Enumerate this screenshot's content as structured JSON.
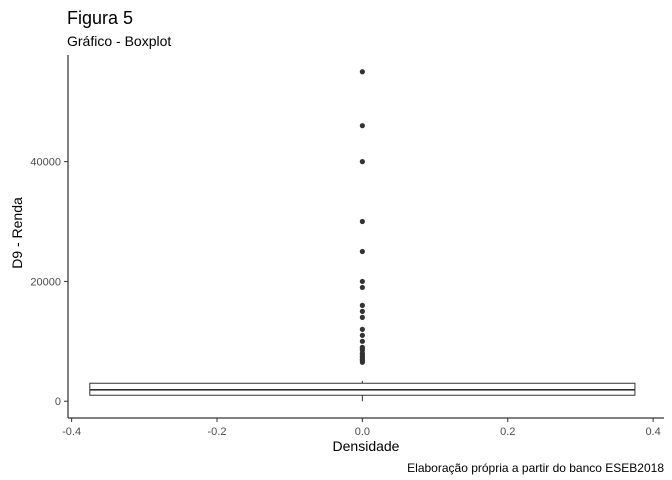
{
  "chart_data": {
    "type": "boxplot",
    "title": "Figura 5",
    "subtitle": "Gráfico - Boxplot",
    "xlabel": "Densidade",
    "ylabel": "D9 - Renda",
    "caption": "Elaboração própria a partir do banco ESEB2018",
    "xlim": [
      -0.405,
      0.415
    ],
    "ylim": [
      -2800,
      57800
    ],
    "x_ticks": [
      -0.4,
      -0.2,
      0.0,
      0.2,
      0.4
    ],
    "x_tick_labels": [
      "-0.4",
      "-0.2",
      "0.0",
      "0.2",
      "0.4"
    ],
    "y_ticks": [
      0,
      20000,
      40000
    ],
    "y_tick_labels": [
      "0",
      "20000",
      "40000"
    ],
    "box": {
      "x_left": -0.375,
      "x_right": 0.375,
      "x_center": 0.0,
      "q1": 1000,
      "median": 1900,
      "q3": 3000,
      "whisker_low": 0,
      "whisker_high": 3400
    },
    "outliers": [
      55000,
      46000,
      40000,
      30000,
      25000,
      20000,
      19000,
      16000,
      15000,
      14000,
      12000,
      11000,
      10000,
      9000,
      8800,
      8500,
      8000,
      7800,
      7500,
      7300,
      7000,
      6800,
      6500
    ],
    "grid": false,
    "legend": "none",
    "colors": {
      "box_fill": "#ffffff",
      "box_line": "#333333",
      "point": "#333333",
      "axis": "#000000",
      "tick_label": "#4d4d4d"
    }
  }
}
